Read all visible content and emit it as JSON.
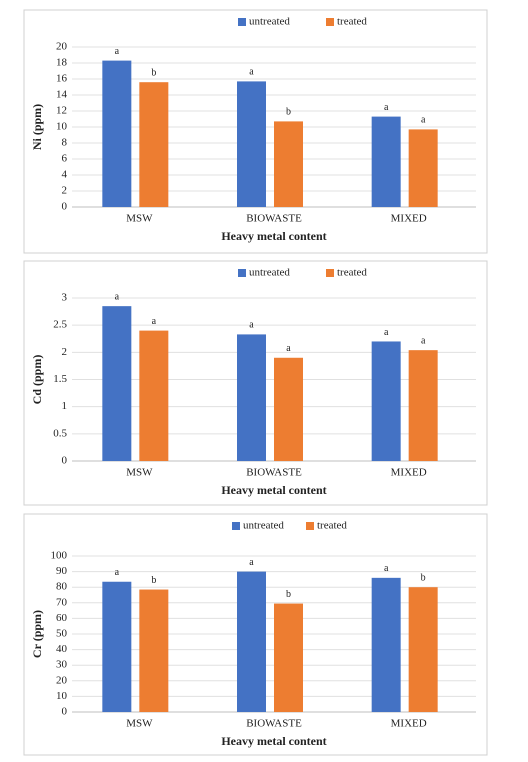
{
  "chart_data": [
    {
      "type": "bar",
      "y_label": "Ni (ppm)",
      "x_label": "Heavy metal content",
      "categories": [
        "MSW",
        "BIOWASTE",
        "MIXED"
      ],
      "series": [
        {
          "name": "untreated",
          "color": "#4472c4",
          "values": [
            18.3,
            15.7,
            11.3
          ],
          "significance": [
            "a",
            "a",
            "a"
          ]
        },
        {
          "name": "treated",
          "color": "#ed7d31",
          "values": [
            15.6,
            10.7,
            9.7
          ],
          "significance": [
            "b",
            "b",
            "a"
          ]
        }
      ],
      "ylim": [
        0,
        20
      ],
      "yticks": [
        0,
        2,
        4,
        6,
        8,
        10,
        12,
        14,
        16,
        18,
        20
      ],
      "grid": true,
      "legend": "top"
    },
    {
      "type": "bar",
      "y_label": "Cd (ppm)",
      "x_label": "Heavy metal content",
      "categories": [
        "MSW",
        "BIOWASTE",
        "MIXED"
      ],
      "series": [
        {
          "name": "untreated",
          "color": "#4472c4",
          "values": [
            2.85,
            2.33,
            2.2
          ],
          "significance": [
            "a",
            "a",
            "a"
          ]
        },
        {
          "name": "treated",
          "color": "#ed7d31",
          "values": [
            2.4,
            1.9,
            2.04
          ],
          "significance": [
            "a",
            "a",
            "a"
          ]
        }
      ],
      "ylim": [
        0,
        3
      ],
      "yticks": [
        0,
        0.5,
        1,
        1.5,
        2,
        2.5,
        3
      ],
      "grid": true,
      "legend": "top"
    },
    {
      "type": "bar",
      "y_label": "Cr (ppm)",
      "x_label": "Heavy metal content",
      "categories": [
        "MSW",
        "BIOWASTE",
        "MIXED"
      ],
      "series": [
        {
          "name": "untreated",
          "color": "#4472c4",
          "values": [
            83.5,
            90,
            86
          ],
          "significance": [
            "a",
            "a",
            "a"
          ]
        },
        {
          "name": "treated",
          "color": "#ed7d31",
          "values": [
            78.5,
            69.5,
            80
          ],
          "significance": [
            "b",
            "b",
            "b"
          ]
        }
      ],
      "ylim": [
        0,
        100
      ],
      "yticks": [
        0,
        10,
        20,
        30,
        40,
        50,
        60,
        70,
        80,
        90,
        100
      ],
      "grid": true,
      "legend": "top"
    }
  ]
}
